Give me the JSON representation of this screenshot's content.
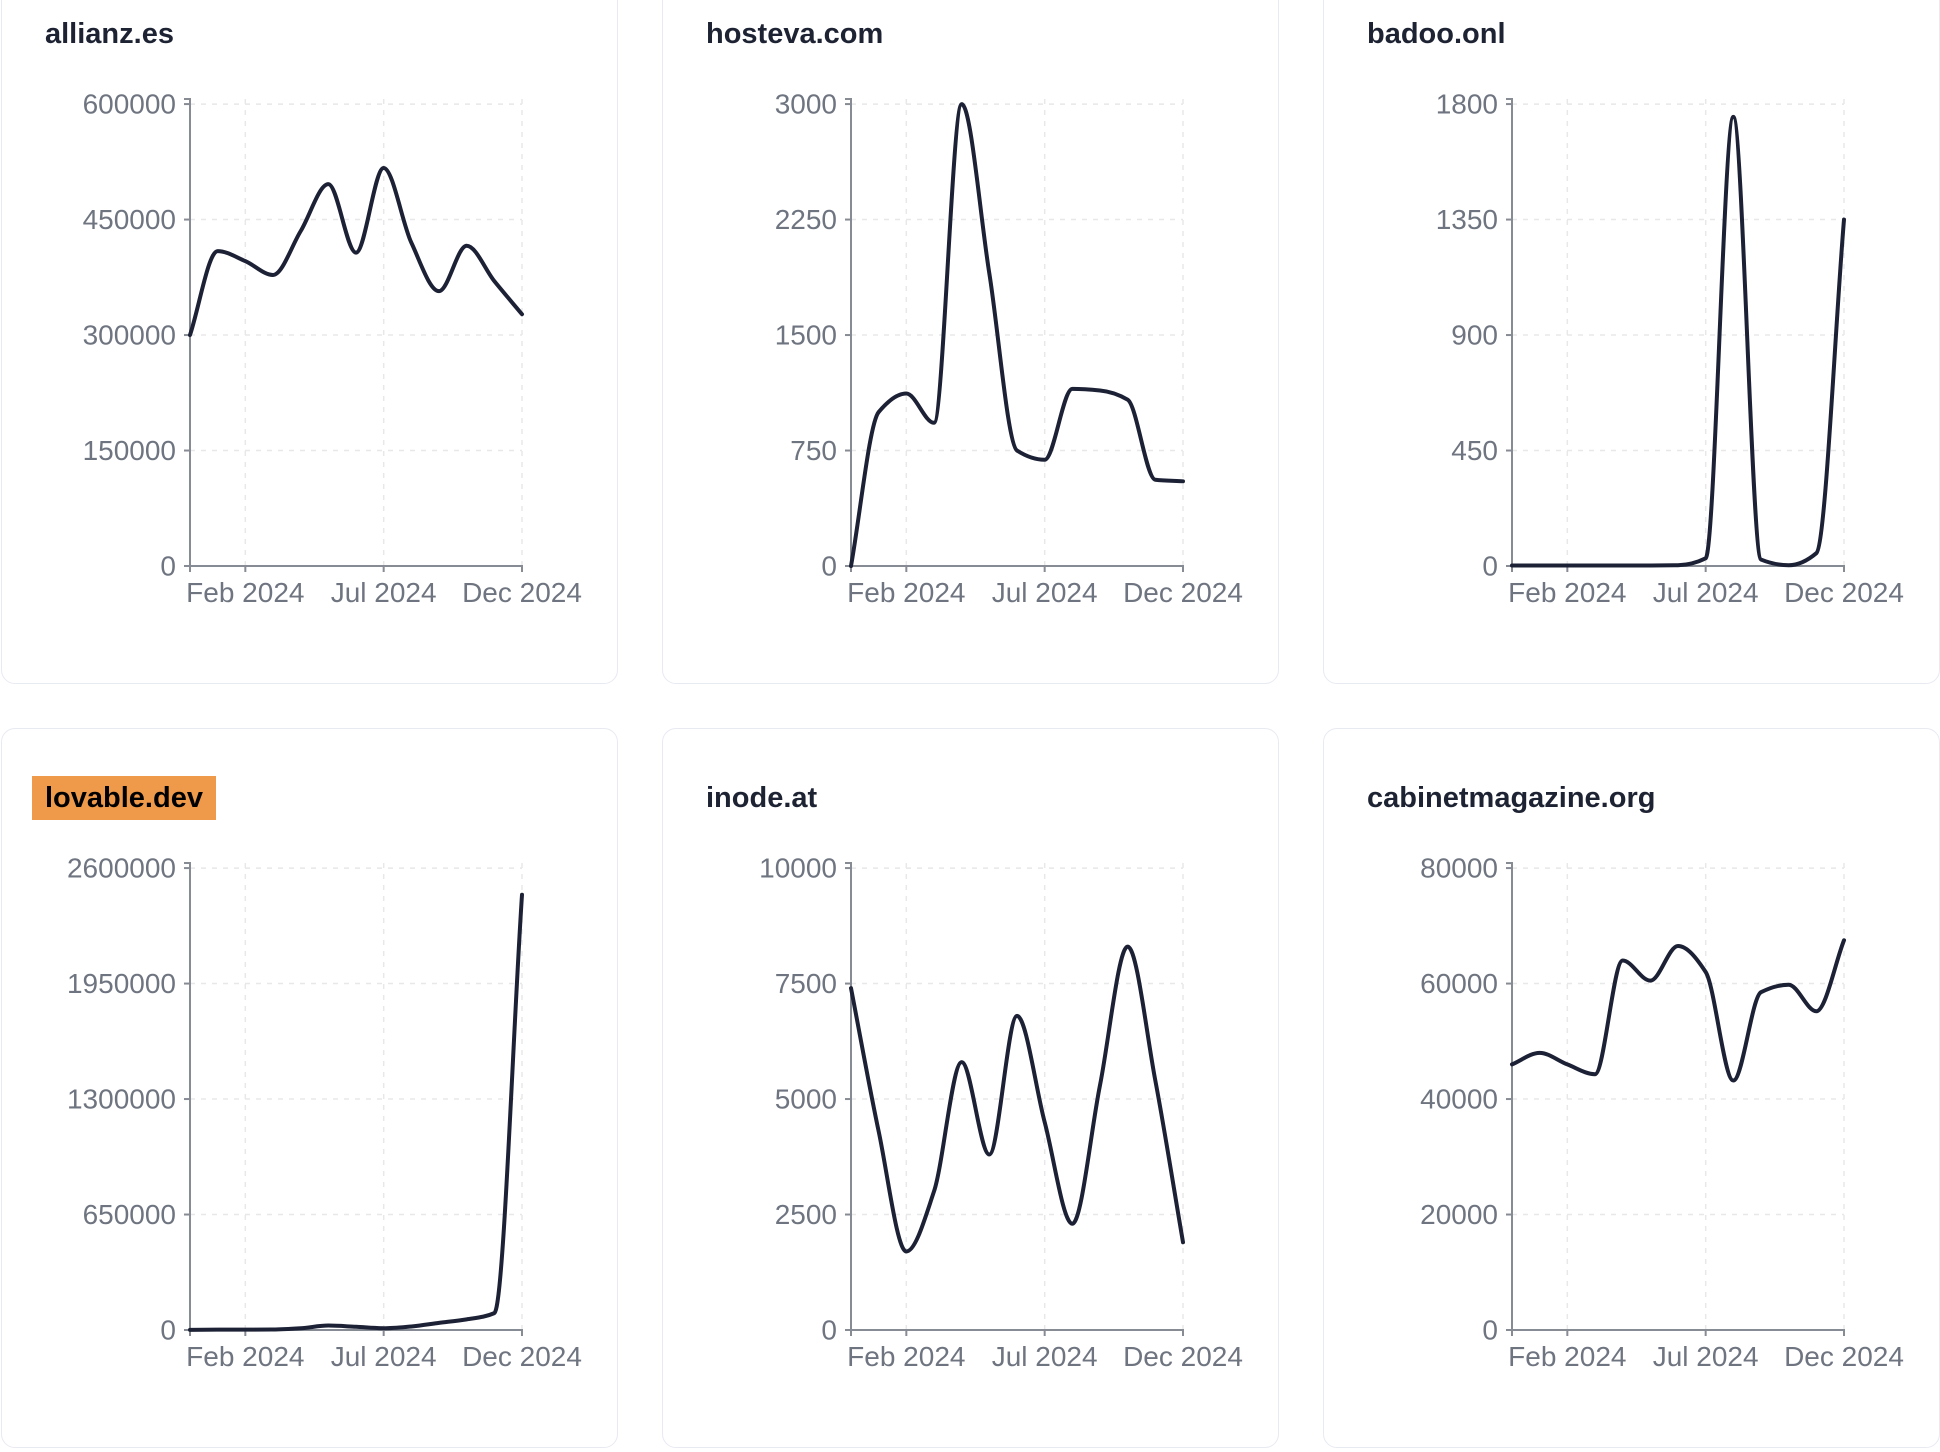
{
  "page": {
    "background": "#ffffff",
    "card_border": "#e8eaf2"
  },
  "style": {
    "line_color": "#1c2135",
    "axis_color": "#878b94",
    "grid_color": "#e8e8e8",
    "label_color": "#6f7580",
    "title_color": "#1e2333",
    "highlight_bg": "#EF9A4B",
    "highlight_text": "#000000"
  },
  "chart_data": [
    {
      "type": "line",
      "title": "allianz.es",
      "title_highlighted": false,
      "x": [
        "Dec 2023",
        "Jan 2024",
        "Feb 2024",
        "Mar 2024",
        "Apr 2024",
        "May 2024",
        "Jun 2024",
        "Jul 2024",
        "Aug 2024",
        "Sep 2024",
        "Oct 2024",
        "Nov 2024",
        "Dec 2024"
      ],
      "values": [
        300000,
        409000,
        396000,
        378000,
        435000,
        496000,
        407000,
        517000,
        420000,
        357000,
        416000,
        370000,
        327000
      ],
      "y_ticks": [
        0,
        150000,
        300000,
        450000,
        600000
      ],
      "ylim": [
        0,
        600000
      ],
      "x_tick_indices": [
        2,
        7,
        12
      ],
      "x_tick_labels": [
        "Feb 2024",
        "Jul 2024",
        "Dec 2024"
      ],
      "grid": "dashed",
      "legend": "none"
    },
    {
      "type": "line",
      "title": "hosteva.com",
      "title_highlighted": false,
      "x": [
        "Dec 2023",
        "Jan 2024",
        "Feb 2024",
        "Mar 2024",
        "Apr 2024",
        "May 2024",
        "Jun 2024",
        "Jul 2024",
        "Aug 2024",
        "Sep 2024",
        "Oct 2024",
        "Nov 2024",
        "Dec 2024"
      ],
      "values": [
        0,
        1000,
        1120,
        930,
        3000,
        1900,
        750,
        690,
        1150,
        1140,
        1080,
        560,
        550
      ],
      "y_ticks": [
        0,
        750,
        1500,
        2250,
        3000
      ],
      "ylim": [
        0,
        3000
      ],
      "x_tick_indices": [
        2,
        7,
        12
      ],
      "x_tick_labels": [
        "Feb 2024",
        "Jul 2024",
        "Dec 2024"
      ],
      "grid": "dashed",
      "legend": "none"
    },
    {
      "type": "line",
      "title": "badoo.onl",
      "title_highlighted": false,
      "x": [
        "Dec 2023",
        "Jan 2024",
        "Feb 2024",
        "Mar 2024",
        "Apr 2024",
        "May 2024",
        "Jun 2024",
        "Jul 2024",
        "Aug 2024",
        "Sep 2024",
        "Oct 2024",
        "Nov 2024",
        "Dec 2024"
      ],
      "values": [
        2,
        2,
        2,
        2,
        2,
        2,
        3,
        30,
        1750,
        25,
        3,
        50,
        1350
      ],
      "y_ticks": [
        0,
        450,
        900,
        1350,
        1800
      ],
      "ylim": [
        0,
        1800
      ],
      "x_tick_indices": [
        2,
        7,
        12
      ],
      "x_tick_labels": [
        "Feb 2024",
        "Jul 2024",
        "Dec 2024"
      ],
      "grid": "dashed",
      "legend": "none"
    },
    {
      "type": "line",
      "title": "lovable.dev",
      "title_highlighted": true,
      "x": [
        "Dec 2023",
        "Jan 2024",
        "Feb 2024",
        "Mar 2024",
        "Apr 2024",
        "May 2024",
        "Jun 2024",
        "Jul 2024",
        "Aug 2024",
        "Sep 2024",
        "Oct 2024",
        "Nov 2024",
        "Dec 2024"
      ],
      "values": [
        1000,
        2000,
        2000,
        3000,
        10000,
        25000,
        18000,
        10000,
        20000,
        40000,
        60000,
        95000,
        2450000
      ],
      "y_ticks": [
        0,
        650000,
        1300000,
        1950000,
        2600000
      ],
      "ylim": [
        0,
        2600000
      ],
      "x_tick_indices": [
        2,
        7,
        12
      ],
      "x_tick_labels": [
        "Feb 2024",
        "Jul 2024",
        "Dec 2024"
      ],
      "grid": "dashed",
      "legend": "none"
    },
    {
      "type": "line",
      "title": "inode.at",
      "title_highlighted": false,
      "x": [
        "Dec 2023",
        "Jan 2024",
        "Feb 2024",
        "Mar 2024",
        "Apr 2024",
        "May 2024",
        "Jun 2024",
        "Jul 2024",
        "Aug 2024",
        "Sep 2024",
        "Oct 2024",
        "Nov 2024",
        "Dec 2024"
      ],
      "values": [
        7400,
        4300,
        1700,
        3000,
        5800,
        3800,
        6800,
        4500,
        2300,
        5300,
        8300,
        5400,
        1900
      ],
      "y_ticks": [
        0,
        2500,
        5000,
        7500,
        10000
      ],
      "ylim": [
        0,
        10000
      ],
      "x_tick_indices": [
        2,
        7,
        12
      ],
      "x_tick_labels": [
        "Feb 2024",
        "Jul 2024",
        "Dec 2024"
      ],
      "grid": "dashed",
      "legend": "none"
    },
    {
      "type": "line",
      "title": "cabinetmagazine.org",
      "title_highlighted": false,
      "x": [
        "Dec 2023",
        "Jan 2024",
        "Feb 2024",
        "Mar 2024",
        "Apr 2024",
        "May 2024",
        "Jun 2024",
        "Jul 2024",
        "Aug 2024",
        "Sep 2024",
        "Oct 2024",
        "Nov 2024",
        "Dec 2024"
      ],
      "values": [
        46000,
        48000,
        46000,
        44300,
        64000,
        60500,
        66500,
        62000,
        43200,
        58500,
        59800,
        55200,
        67500
      ],
      "y_ticks": [
        0,
        20000,
        40000,
        60000,
        80000
      ],
      "ylim": [
        0,
        80000
      ],
      "x_tick_indices": [
        2,
        7,
        12
      ],
      "x_tick_labels": [
        "Feb 2024",
        "Jul 2024",
        "Dec 2024"
      ],
      "grid": "dashed",
      "legend": "none"
    }
  ]
}
